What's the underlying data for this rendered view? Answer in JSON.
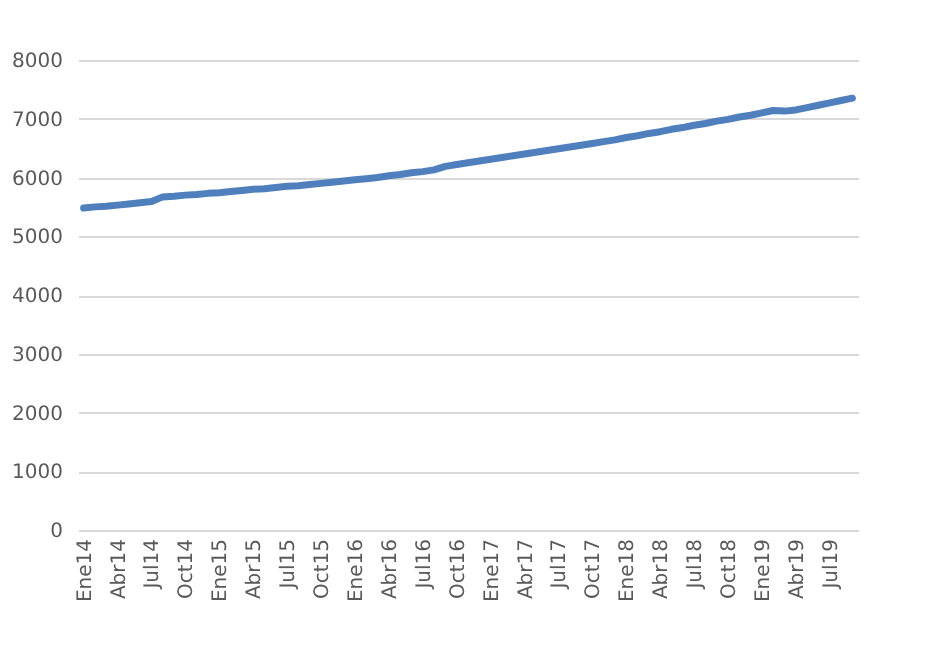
{
  "chart_data": {
    "type": "line",
    "categories": [
      "Ene14",
      null,
      null,
      "Abr14",
      null,
      null,
      "Jul14",
      null,
      null,
      "Oct14",
      null,
      null,
      "Ene15",
      null,
      null,
      "Abr15",
      null,
      null,
      "Jul15",
      null,
      null,
      "Oct15",
      null,
      null,
      "Ene16",
      null,
      null,
      "Abr16",
      null,
      null,
      "Jul16",
      null,
      null,
      "Oct16",
      null,
      null,
      "Ene17",
      null,
      null,
      "Abr17",
      null,
      null,
      "Jul17",
      null,
      null,
      "Oct17",
      null,
      null,
      "Ene18",
      null,
      null,
      "Abr18",
      null,
      null,
      "Jul18",
      null,
      null,
      "Oct18",
      null,
      null,
      "Ene19",
      null,
      null,
      "Abr19",
      null,
      null,
      "Jul19",
      null,
      null
    ],
    "series": [
      {
        "color": "#4f7fbd",
        "values": [
          5480,
          5500,
          5510,
          5530,
          5550,
          5570,
          5590,
          5670,
          5680,
          5700,
          5710,
          5730,
          5740,
          5760,
          5780,
          5800,
          5810,
          5830,
          5850,
          5860,
          5880,
          5900,
          5920,
          5940,
          5960,
          5980,
          6000,
          6030,
          6050,
          6080,
          6100,
          6130,
          6190,
          6220,
          6250,
          6280,
          6310,
          6340,
          6370,
          6400,
          6430,
          6460,
          6490,
          6520,
          6550,
          6580,
          6610,
          6640,
          6680,
          6710,
          6750,
          6780,
          6820,
          6850,
          6890,
          6920,
          6960,
          6990,
          7030,
          7060,
          7100,
          7140,
          7130,
          7150,
          7190,
          7230,
          7270,
          7310,
          7350
        ]
      }
    ],
    "ylim": [
      0,
      8000
    ],
    "yticks": [
      0,
      1000,
      2000,
      3000,
      4000,
      5000,
      6000,
      7000,
      8000
    ],
    "grid": "y",
    "legend": false,
    "marker": "none",
    "line_style": "solid"
  }
}
